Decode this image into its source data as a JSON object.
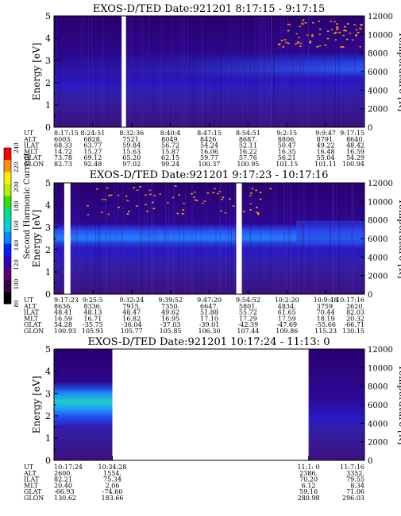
{
  "row_labels": [
    "UT",
    "ALT",
    "ILAT",
    "MLT",
    "GLAT",
    "GLON"
  ],
  "common": {
    "ylabel": "Energy [eV]",
    "y2label": "Temperature [K]",
    "yticks": [
      0,
      1,
      2,
      3,
      4,
      5
    ],
    "y2ticks": [
      0,
      2000,
      4000,
      6000,
      8000,
      10000,
      12000
    ]
  },
  "colorbar": {
    "label": "Second Harmonic Current",
    "ticks": [
      "80",
      "100",
      "120",
      "140",
      "160",
      "180",
      "200",
      "220",
      "240"
    ],
    "colors": [
      "#000000",
      "#3c0046",
      "#5a007a",
      "#2f00c8",
      "#0020ff",
      "#0088ff",
      "#00d0e0",
      "#00e08a",
      "#30e000",
      "#b8f000",
      "#ffee00",
      "#ff9000",
      "#ff0000"
    ]
  },
  "chart_data": [
    {
      "type": "heatmap",
      "title": "EXOS-D/TED   Date:921201   8:17:15 - 9:17:15",
      "ylabel": "Energy [eV]",
      "y2label": "Temperature [K]",
      "ylim": [
        0,
        5
      ],
      "y2lim": [
        0,
        12000
      ],
      "rows": {
        "UT": [
          "8:17:15",
          "8:24:51",
          "8:32:36",
          "8:40:4",
          "8:47:15",
          "8:54:51",
          "9:2:15",
          "9:9:47",
          "9:17:15"
        ],
        "ALT": [
          "6003.",
          "6828.",
          "7521.",
          "8049.",
          "8426.",
          "8687.",
          "8806.",
          "8791.",
          "8640."
        ],
        "ILAT": [
          "68.33",
          "63.77",
          "59.84",
          "56.72",
          "54.24",
          "52.11",
          "50.47",
          "49.22",
          "48.42"
        ],
        "MLT": [
          "14.72",
          "15.27",
          "15.63",
          "15.87",
          "16.06",
          "16.22",
          "16.35",
          "16.48",
          "16.59"
        ],
        "GLAT": [
          "73.78",
          "69.12",
          "65.20",
          "62.15",
          "59.77",
          "57.76",
          "56.21",
          "55.04",
          "54.29"
        ],
        "GLON": [
          "82.73",
          "92.48",
          "97.02",
          "99.24",
          "100.37",
          "100.95",
          "101.15",
          "101.11",
          "100.94"
        ]
      },
      "gaps": [
        [
          0.218,
          0.232
        ]
      ]
    },
    {
      "type": "heatmap",
      "title": "EXOS-D/TED   Date:921201   9:17:23 - 10:17:16",
      "ylabel": "Energy [eV]",
      "y2label": "Temperature [K]",
      "ylim": [
        0,
        5
      ],
      "y2lim": [
        0,
        12000
      ],
      "rows": {
        "UT": [
          "9:17:23",
          "9:25:5",
          "9:32:24",
          "9:39:52",
          "9:47:20",
          "9:54:52",
          "10:2:20",
          "10:9:48",
          "10:17:16"
        ],
        "ALT": [
          "8636.",
          "8336.",
          "7915.",
          "7350.",
          "6647.",
          "5801.",
          "4834.",
          "3759.",
          "2620."
        ],
        "ILAT": [
          "48.41",
          "48.13",
          "48.47",
          "49.62",
          "51.88",
          "55.72",
          "61.65",
          "70.44",
          "82.03"
        ],
        "MLT": [
          "16.59",
          "16.71",
          "16.82",
          "16.95",
          "17.10",
          "17.29",
          "17.59",
          "18.19",
          "20.32"
        ],
        "GLAT": [
          "54.28",
          "-35.75",
          "-36.04",
          "-37.03",
          "-39.01",
          "-42.39",
          "-47.69",
          "-55.66",
          "-66.71"
        ],
        "GLON": [
          "100.93",
          "105.91",
          "105.77",
          "105.85",
          "106.30",
          "107.44",
          "109.86",
          "115.23",
          "130.15"
        ]
      },
      "gaps": [
        [
          0.033,
          0.053
        ],
        [
          0.587,
          0.605
        ]
      ]
    },
    {
      "type": "heatmap",
      "title": "EXOS-D/TED   Date:921201   10:17:24 - 11:13: 0",
      "ylabel": "Energy [eV]",
      "y2label": "Temperature [K]",
      "ylim": [
        0,
        5
      ],
      "y2lim": [
        0,
        12000
      ],
      "ut_positions": [
        0.0,
        0.188,
        0.82,
        1.0
      ],
      "rows": {
        "UT": [
          "10:17:24",
          "10:34:28",
          "11:1: 0",
          "11:7:16"
        ],
        "ALT": [
          "2600.",
          "1554.",
          "2386.",
          "3352."
        ],
        "ILAT": [
          "82.21",
          "75.34",
          "70.20",
          "79.55"
        ],
        "MLT": [
          "20.40",
          "2.06",
          "6.12",
          "8.34"
        ],
        "GLAT": [
          "-66.93",
          "-74.60",
          "59.16",
          "71.06"
        ],
        "GLON": [
          "130.62",
          "183.66",
          "280.98",
          "296.03"
        ]
      },
      "data_segments": [
        [
          0.0,
          0.188
        ],
        [
          0.82,
          1.0
        ]
      ]
    }
  ]
}
